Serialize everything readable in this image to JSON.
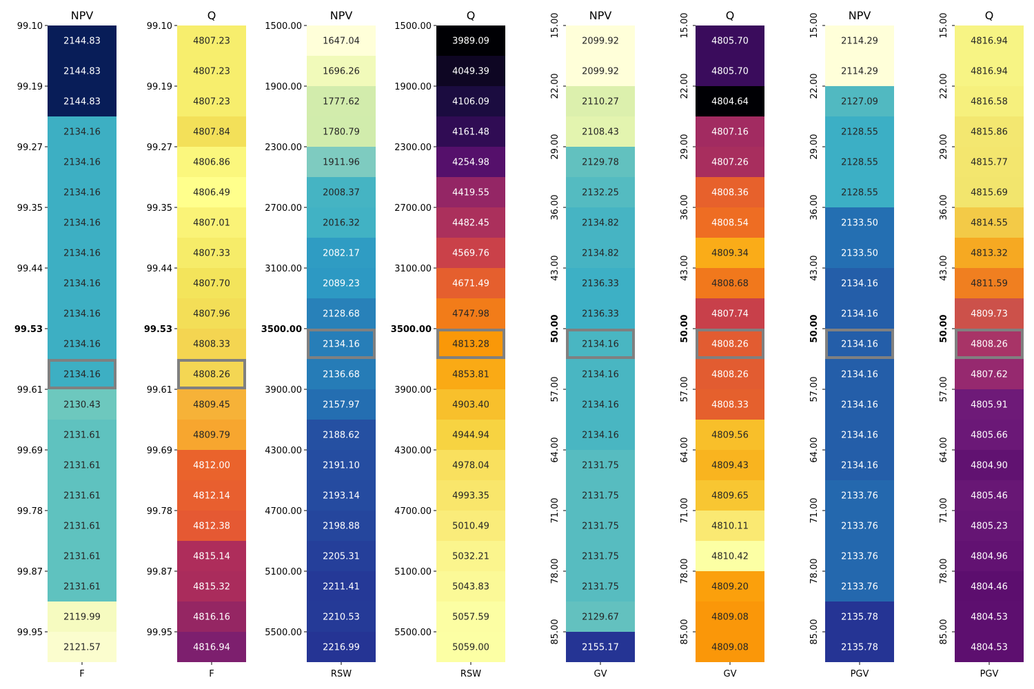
{
  "chart_data": [
    {
      "type": "heatmap",
      "title": "NPV",
      "xlabel": "F",
      "palette": "blues",
      "values": [
        2144.83,
        2144.83,
        2144.83,
        2134.16,
        2134.16,
        2134.16,
        2134.16,
        2134.16,
        2134.16,
        2134.16,
        2134.16,
        2134.16,
        2130.43,
        2131.61,
        2131.61,
        2131.61,
        2131.61,
        2131.61,
        2131.61,
        2119.99,
        2121.57
      ],
      "value_labels": [
        "2144.83",
        "2144.83",
        "2144.83",
        "2134.16",
        "2134.16",
        "2134.16",
        "2134.16",
        "2134.16",
        "2134.16",
        "2134.16",
        "2134.16",
        "2134.16",
        "2130.43",
        "2131.61",
        "2131.61",
        "2131.61",
        "2131.61",
        "2131.61",
        "2131.61",
        "2119.99",
        "2121.57"
      ],
      "yticks": [
        "99.10",
        "99.19",
        "99.27",
        "99.35",
        "99.44",
        "99.53",
        "99.61",
        "99.69",
        "99.78",
        "99.87",
        "99.95"
      ],
      "highlight_tick": 5,
      "highlight_row": 11,
      "tick_rotation": 0
    },
    {
      "type": "heatmap",
      "title": "Q",
      "xlabel": "F",
      "palette": "flare",
      "values": [
        4807.23,
        4807.23,
        4807.23,
        4807.84,
        4806.86,
        4806.49,
        4807.01,
        4807.33,
        4807.7,
        4807.96,
        4808.33,
        4808.26,
        4809.45,
        4809.79,
        4812.0,
        4812.14,
        4812.38,
        4815.14,
        4815.32,
        4816.16,
        4816.94
      ],
      "value_labels": [
        "4807.23",
        "4807.23",
        "4807.23",
        "4807.84",
        "4806.86",
        "4806.49",
        "4807.01",
        "4807.33",
        "4807.70",
        "4807.96",
        "4808.33",
        "4808.26",
        "4809.45",
        "4809.79",
        "4812.00",
        "4812.14",
        "4812.38",
        "4815.14",
        "4815.32",
        "4816.16",
        "4816.94"
      ],
      "yticks": [
        "99.10",
        "99.19",
        "99.27",
        "99.35",
        "99.44",
        "99.53",
        "99.61",
        "99.69",
        "99.78",
        "99.87",
        "99.95"
      ],
      "highlight_tick": 5,
      "highlight_row": 11,
      "tick_rotation": 0
    },
    {
      "type": "heatmap",
      "title": "NPV",
      "xlabel": "RSW",
      "palette": "ygb",
      "values": [
        1647.04,
        1696.26,
        1777.62,
        1780.79,
        1911.96,
        2008.37,
        2016.32,
        2082.17,
        2089.23,
        2128.68,
        2134.16,
        2136.68,
        2157.97,
        2188.62,
        2191.1,
        2193.14,
        2198.88,
        2205.31,
        2211.41,
        2210.53,
        2216.99
      ],
      "value_labels": [
        "1647.04",
        "1696.26",
        "1777.62",
        "1780.79",
        "1911.96",
        "2008.37",
        "2016.32",
        "2082.17",
        "2089.23",
        "2128.68",
        "2134.16",
        "2136.68",
        "2157.97",
        "2188.62",
        "2191.10",
        "2193.14",
        "2198.88",
        "2205.31",
        "2211.41",
        "2210.53",
        "2216.99"
      ],
      "yticks": [
        "1500.00",
        "1900.00",
        "2300.00",
        "2700.00",
        "3100.00",
        "3500.00",
        "3900.00",
        "4300.00",
        "4700.00",
        "5100.00",
        "5500.00"
      ],
      "highlight_tick": 5,
      "highlight_row": 10,
      "tick_rotation": 0
    },
    {
      "type": "heatmap",
      "title": "Q",
      "xlabel": "RSW",
      "palette": "inferno",
      "values": [
        3989.09,
        4049.39,
        4106.09,
        4161.48,
        4254.98,
        4419.55,
        4482.45,
        4569.76,
        4671.49,
        4747.98,
        4813.28,
        4853.81,
        4903.4,
        4944.94,
        4978.04,
        4993.35,
        5010.49,
        5032.21,
        5043.83,
        5057.59,
        5059.0
      ],
      "value_labels": [
        "3989.09",
        "4049.39",
        "4106.09",
        "4161.48",
        "4254.98",
        "4419.55",
        "4482.45",
        "4569.76",
        "4671.49",
        "4747.98",
        "4813.28",
        "4853.81",
        "4903.40",
        "4944.94",
        "4978.04",
        "4993.35",
        "5010.49",
        "5032.21",
        "5043.83",
        "5057.59",
        "5059.00"
      ],
      "yticks": [
        "1500.00",
        "1900.00",
        "2300.00",
        "2700.00",
        "3100.00",
        "3500.00",
        "3900.00",
        "4300.00",
        "4700.00",
        "5100.00",
        "5500.00"
      ],
      "highlight_tick": 5,
      "highlight_row": 10,
      "tick_rotation": 0
    },
    {
      "type": "heatmap",
      "title": "NPV",
      "xlabel": "GV",
      "palette": "ygb",
      "values": [
        2099.92,
        2099.92,
        2110.27,
        2108.43,
        2129.78,
        2132.25,
        2134.82,
        2134.82,
        2136.33,
        2136.33,
        2134.16,
        2134.16,
        2134.16,
        2134.16,
        2131.75,
        2131.75,
        2131.75,
        2131.75,
        2131.75,
        2129.67,
        2155.17
      ],
      "value_labels": [
        "2099.92",
        "2099.92",
        "2110.27",
        "2108.43",
        "2129.78",
        "2132.25",
        "2134.82",
        "2134.82",
        "2136.33",
        "2136.33",
        "2134.16",
        "2134.16",
        "2134.16",
        "2134.16",
        "2131.75",
        "2131.75",
        "2131.75",
        "2131.75",
        "2131.75",
        "2129.67",
        "2155.17"
      ],
      "yticks": [
        "15.00",
        "22.00",
        "29.00",
        "36.00",
        "43.00",
        "50.00",
        "57.00",
        "64.00",
        "71.00",
        "78.00",
        "85.00"
      ],
      "highlight_tick": 5,
      "highlight_row": 10,
      "tick_rotation": 90
    },
    {
      "type": "heatmap",
      "title": "Q",
      "xlabel": "GV",
      "palette": "inferno",
      "values": [
        4805.7,
        4805.7,
        4804.64,
        4807.16,
        4807.26,
        4808.36,
        4808.54,
        4809.34,
        4808.68,
        4807.74,
        4808.26,
        4808.26,
        4808.33,
        4809.56,
        4809.43,
        4809.65,
        4810.11,
        4810.42,
        4809.2,
        4809.08,
        4809.08
      ],
      "value_labels": [
        "4805.70",
        "4805.70",
        "4804.64",
        "4807.16",
        "4807.26",
        "4808.36",
        "4808.54",
        "4809.34",
        "4808.68",
        "4807.74",
        "4808.26",
        "4808.26",
        "4808.33",
        "4809.56",
        "4809.43",
        "4809.65",
        "4810.11",
        "4810.42",
        "4809.20",
        "4809.08",
        "4809.08"
      ],
      "yticks": [
        "15.00",
        "22.00",
        "29.00",
        "36.00",
        "43.00",
        "50.00",
        "57.00",
        "64.00",
        "71.00",
        "78.00",
        "85.00"
      ],
      "highlight_tick": 5,
      "highlight_row": 10,
      "tick_rotation": 90
    },
    {
      "type": "heatmap",
      "title": "NPV",
      "xlabel": "PGV",
      "palette": "ygb",
      "values": [
        2114.29,
        2114.29,
        2127.09,
        2128.55,
        2128.55,
        2128.55,
        2133.5,
        2133.5,
        2134.16,
        2134.16,
        2134.16,
        2134.16,
        2134.16,
        2134.16,
        2134.16,
        2133.76,
        2133.76,
        2133.76,
        2133.76,
        2135.78,
        2135.78
      ],
      "value_labels": [
        "2114.29",
        "2114.29",
        "2127.09",
        "2128.55",
        "2128.55",
        "2128.55",
        "2133.50",
        "2133.50",
        "2134.16",
        "2134.16",
        "2134.16",
        "2134.16",
        "2134.16",
        "2134.16",
        "2134.16",
        "2133.76",
        "2133.76",
        "2133.76",
        "2133.76",
        "2135.78",
        "2135.78"
      ],
      "yticks": [
        "15.00",
        "22.00",
        "29.00",
        "36.00",
        "43.00",
        "50.00",
        "57.00",
        "64.00",
        "71.00",
        "78.00",
        "85.00"
      ],
      "highlight_tick": 5,
      "highlight_row": 10,
      "tick_rotation": 90
    },
    {
      "type": "heatmap",
      "title": "Q",
      "xlabel": "PGV",
      "palette": "plasma",
      "values": [
        4816.94,
        4816.94,
        4816.58,
        4815.86,
        4815.77,
        4815.69,
        4814.55,
        4813.32,
        4811.59,
        4809.73,
        4808.26,
        4807.62,
        4805.91,
        4805.66,
        4804.9,
        4805.46,
        4805.23,
        4804.96,
        4804.46,
        4804.53,
        4804.53
      ],
      "value_labels": [
        "4816.94",
        "4816.94",
        "4816.58",
        "4815.86",
        "4815.77",
        "4815.69",
        "4814.55",
        "4813.32",
        "4811.59",
        "4809.73",
        "4808.26",
        "4807.62",
        "4805.91",
        "4805.66",
        "4804.90",
        "4805.46",
        "4805.23",
        "4804.96",
        "4804.46",
        "4804.53",
        "4804.53"
      ],
      "yticks": [
        "15.00",
        "22.00",
        "29.00",
        "36.00",
        "43.00",
        "50.00",
        "57.00",
        "64.00",
        "71.00",
        "78.00",
        "85.00"
      ],
      "highlight_tick": 5,
      "highlight_row": 10,
      "tick_rotation": 90
    }
  ],
  "colors": {
    "highlight_tick": "#ff0000",
    "highlight_box": "#808080",
    "text_dark": "#262626",
    "text_light": "#ffffff"
  }
}
